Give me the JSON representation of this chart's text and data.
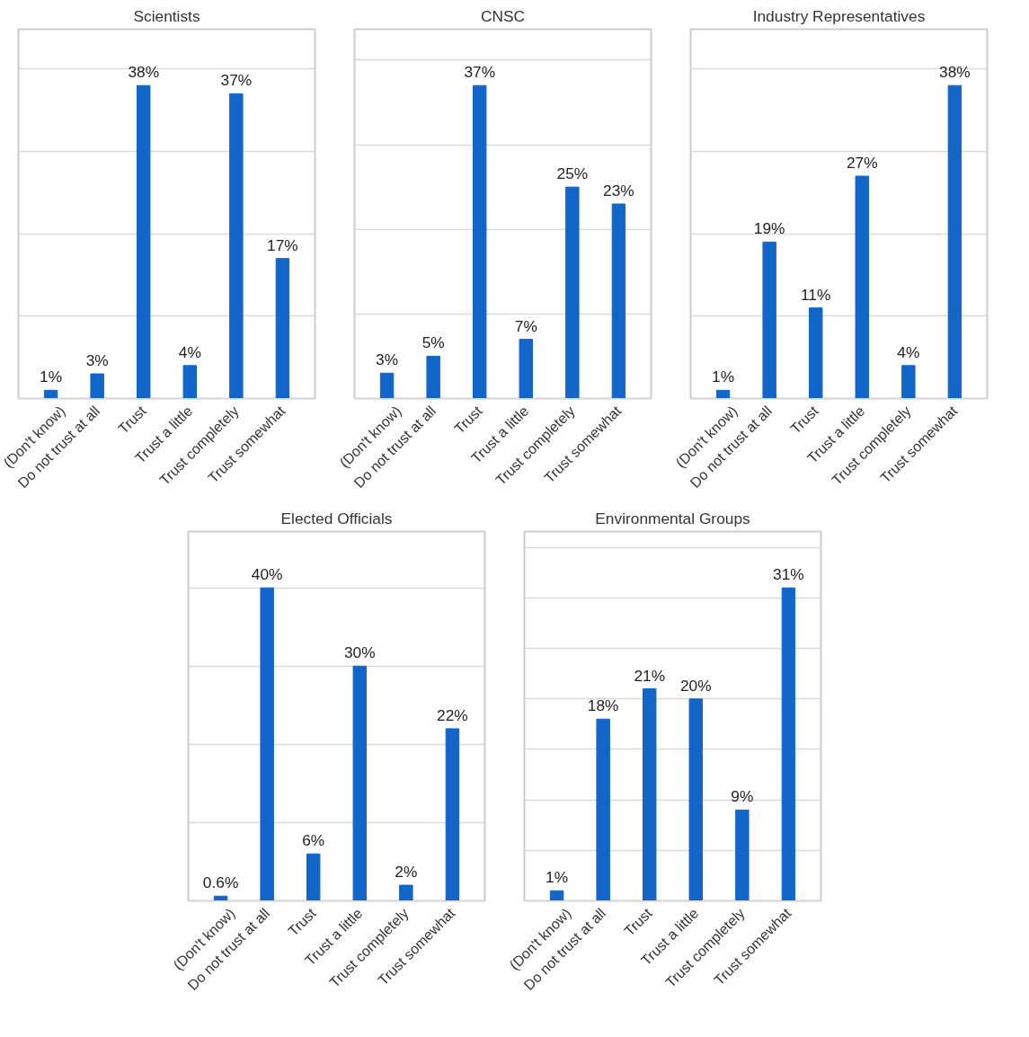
{
  "chart_data": [
    {
      "type": "bar",
      "title": "Scientists",
      "categories": [
        "(Don't know)",
        "Do not trust at all",
        "Trust",
        "Trust a little",
        "Trust completely",
        "Trust somewhat"
      ],
      "values": [
        1,
        3,
        38,
        4,
        37,
        17
      ],
      "value_labels": [
        "1%",
        "3%",
        "38%",
        "4%",
        "37%",
        "17%"
      ],
      "color": "#1366c9",
      "tick_labels": "x",
      "grid": "y"
    },
    {
      "type": "bar",
      "title": "CNSC",
      "categories": [
        "(Don't know)",
        "Do not trust at all",
        "Trust",
        "Trust a little",
        "Trust completely",
        "Trust somewhat"
      ],
      "values": [
        3,
        5,
        37,
        7,
        25,
        23
      ],
      "value_labels": [
        "3%",
        "5%",
        "37%",
        "7%",
        "25%",
        "23%"
      ],
      "color": "#1366c9",
      "tick_labels": "x",
      "grid": "y"
    },
    {
      "type": "bar",
      "title": "Industry Representatives",
      "categories": [
        "(Don't know)",
        "Do not trust at all",
        "Trust",
        "Trust a little",
        "Trust completely",
        "Trust somewhat"
      ],
      "values": [
        1,
        19,
        11,
        27,
        4,
        38
      ],
      "value_labels": [
        "1%",
        "19%",
        "11%",
        "27%",
        "4%",
        "38%"
      ],
      "color": "#1366c9",
      "tick_labels": "x",
      "grid": "y"
    },
    {
      "type": "bar",
      "title": "Elected Officials",
      "categories": [
        "(Don't know)",
        "Do not trust at all",
        "Trust",
        "Trust a little",
        "Trust completely",
        "Trust somewhat"
      ],
      "values": [
        0.6,
        40,
        6,
        30,
        2,
        22
      ],
      "value_labels": [
        "0.6%",
        "40%",
        "6%",
        "30%",
        "2%",
        "22%"
      ],
      "color": "#1366c9",
      "tick_labels": "x",
      "grid": "y"
    },
    {
      "type": "bar",
      "title": "Environmental Groups",
      "categories": [
        "(Don't know)",
        "Do not trust at all",
        "Trust",
        "Trust a little",
        "Trust completely",
        "Trust somewhat"
      ],
      "values": [
        1,
        18,
        21,
        20,
        9,
        31
      ],
      "value_labels": [
        "1%",
        "18%",
        "21%",
        "20%",
        "9%",
        "31%"
      ],
      "color": "#1366c9",
      "tick_labels": "x",
      "grid": "y"
    }
  ]
}
